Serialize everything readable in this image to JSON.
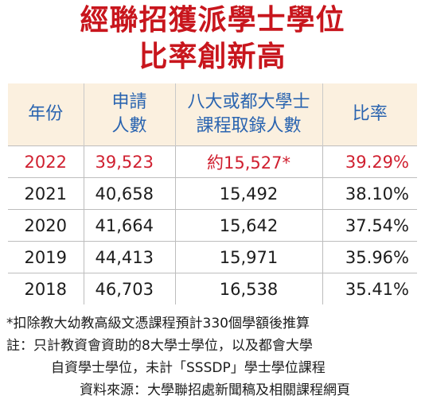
{
  "title": {
    "line1": "經聯招獲派學士學位",
    "line2": "比率創新高"
  },
  "table": {
    "headers": [
      [
        "年份"
      ],
      [
        "申請",
        "人數"
      ],
      [
        "八大或都大學士",
        "課程取錄人數"
      ],
      [
        "比率"
      ]
    ],
    "rows": [
      {
        "year": "2022",
        "applicants": "39,523",
        "admitted": "約15,527*",
        "ratio": "39.29%",
        "highlight": true
      },
      {
        "year": "2021",
        "applicants": "40,658",
        "admitted": "15,492",
        "ratio": "38.10%",
        "highlight": false
      },
      {
        "year": "2020",
        "applicants": "41,664",
        "admitted": "15,642",
        "ratio": "37.54%",
        "highlight": false
      },
      {
        "year": "2019",
        "applicants": "44,413",
        "admitted": "15,971",
        "ratio": "35.96%",
        "highlight": false
      },
      {
        "year": "2018",
        "applicants": "46,703",
        "admitted": "16,538",
        "ratio": "35.41%",
        "highlight": false
      }
    ]
  },
  "notes": {
    "line1": "*扣除教大幼教高級文憑課程預計330個學額後推算",
    "line2": "註：只計教資會資助的8大學士學位，以及都會大學",
    "line3": "自資學士學位，未計「SSSDP」學士學位課程",
    "line4": "資料來源：大學聯招處新聞稿及相關課程網頁"
  },
  "colors": {
    "title": "#c8161d",
    "header_text": "#2a64b0",
    "header_bg": "#fbf0df",
    "highlight_row": "#d02030"
  }
}
